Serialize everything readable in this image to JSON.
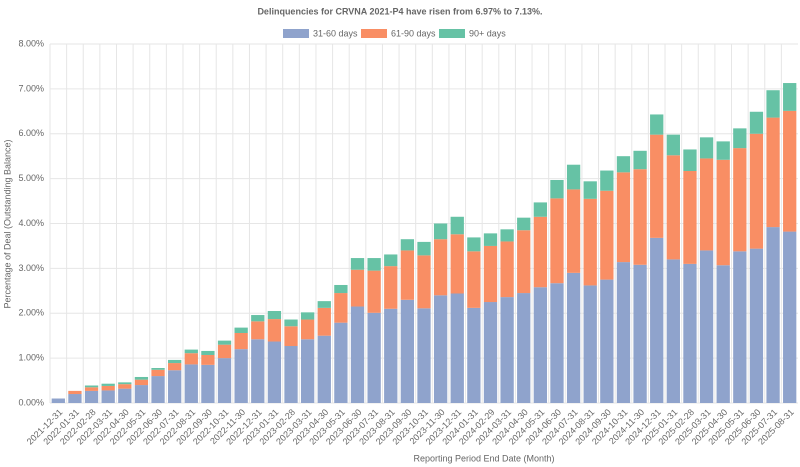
{
  "chart_data": {
    "type": "stacked_bar",
    "title": "Delinquencies for CRVNA 2021-P4 have risen from 6.97% to 7.13%.",
    "x_label": "Reporting Period End Date (Month)",
    "y_label": "Percentage of Deal (Outstanding Balance)",
    "categories": [
      "2021-12-31",
      "2022-01-31",
      "2022-02-28",
      "2022-03-31",
      "2022-04-30",
      "2022-05-31",
      "2022-06-30",
      "2022-07-31",
      "2022-08-31",
      "2022-09-30",
      "2022-10-31",
      "2022-11-30",
      "2022-12-31",
      "2023-01-31",
      "2023-02-28",
      "2023-03-31",
      "2023-04-30",
      "2023-05-31",
      "2023-06-30",
      "2023-07-31",
      "2023-08-31",
      "2023-09-30",
      "2023-10-31",
      "2023-11-30",
      "2023-12-31",
      "2024-01-31",
      "2024-02-29",
      "2024-03-31",
      "2024-04-30",
      "2024-05-31",
      "2024-06-30",
      "2024-07-31",
      "2024-08-31",
      "2024-09-30",
      "2024-10-31",
      "2024-11-30",
      "2024-12-31",
      "2025-01-31",
      "2025-02-28",
      "2025-03-31",
      "2025-04-30",
      "2025-05-31",
      "2025-06-30",
      "2025-07-31",
      "2025-08-31"
    ],
    "series": [
      {
        "name": "31-60 days",
        "color": "#8fa3cc",
        "values": [
          0.1,
          0.2,
          0.27,
          0.28,
          0.32,
          0.4,
          0.6,
          0.73,
          0.86,
          0.85,
          1.0,
          1.2,
          1.42,
          1.37,
          1.27,
          1.42,
          1.5,
          1.79,
          2.15,
          2.01,
          2.1,
          2.3,
          2.11,
          2.4,
          2.44,
          2.12,
          2.25,
          2.36,
          2.45,
          2.58,
          2.67,
          2.9,
          2.62,
          2.75,
          3.14,
          3.08,
          3.68,
          3.2,
          3.1,
          3.4,
          3.07,
          3.38,
          3.44,
          3.92,
          3.82
        ]
      },
      {
        "name": "61-90 days",
        "color": "#f98e64",
        "values": [
          0,
          0.07,
          0.08,
          0.1,
          0.1,
          0.12,
          0.14,
          0.16,
          0.25,
          0.22,
          0.3,
          0.36,
          0.4,
          0.5,
          0.44,
          0.44,
          0.62,
          0.66,
          0.82,
          0.94,
          0.95,
          1.1,
          1.18,
          1.25,
          1.32,
          1.26,
          1.25,
          1.24,
          1.4,
          1.57,
          1.89,
          1.86,
          1.93,
          1.98,
          2.0,
          2.13,
          2.3,
          2.32,
          2.07,
          2.05,
          2.35,
          2.3,
          2.56,
          2.44,
          2.69
        ]
      },
      {
        "name": "90+ days",
        "color": "#66c2a5",
        "values": [
          0,
          0,
          0.04,
          0.05,
          0.04,
          0.06,
          0.04,
          0.07,
          0.08,
          0.09,
          0.09,
          0.12,
          0.14,
          0.18,
          0.15,
          0.16,
          0.15,
          0.18,
          0.26,
          0.28,
          0.26,
          0.25,
          0.3,
          0.35,
          0.39,
          0.31,
          0.28,
          0.27,
          0.28,
          0.32,
          0.41,
          0.55,
          0.39,
          0.45,
          0.36,
          0.41,
          0.45,
          0.46,
          0.48,
          0.47,
          0.41,
          0.44,
          0.49,
          0.61,
          0.62
        ]
      }
    ],
    "ylim": [
      0,
      8
    ],
    "yticks": [
      {
        "value": 0,
        "label": "0.00%"
      },
      {
        "value": 1,
        "label": "1.00%"
      },
      {
        "value": 2,
        "label": "2.00%"
      },
      {
        "value": 3,
        "label": "3.00%"
      },
      {
        "value": 4,
        "label": "4.00%"
      },
      {
        "value": 5,
        "label": "5.00%"
      },
      {
        "value": 6,
        "label": "6.00%"
      },
      {
        "value": 7,
        "label": "7.00%"
      },
      {
        "value": 8,
        "label": "8.00%"
      }
    ],
    "grid": true,
    "legend": "top"
  }
}
